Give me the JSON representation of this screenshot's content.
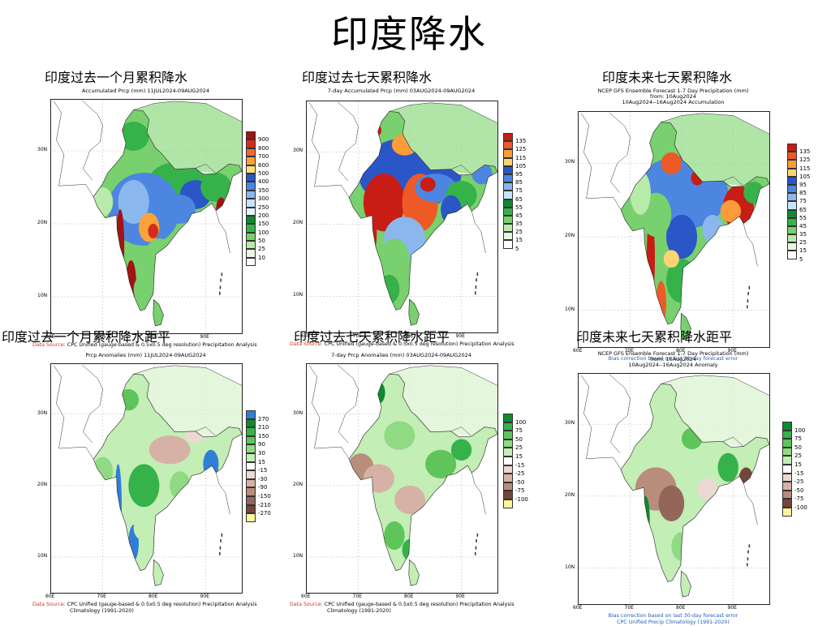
{
  "title": "印度降水",
  "panels": [
    {
      "heading": "印度过去一个月累积降水",
      "subtitle": [
        "Accumulated Prcp (mm) 11JUL2024-09AUG2024"
      ],
      "legend": {
        "labels": [
          "900",
          "800",
          "700",
          "600",
          "500",
          "400",
          "350",
          "300",
          "250",
          "200",
          "150",
          "100",
          "50",
          "25",
          "10"
        ],
        "colors": [
          "#a11414",
          "#d42c1c",
          "#ef6a2c",
          "#fba33a",
          "#fde07a",
          "#2b56c7",
          "#4d86e0",
          "#8ab8ee",
          "#c8e4fb",
          "#e9f6ff",
          "#0f8a2f",
          "#36b24a",
          "#79d06e",
          "#b8eaa9",
          "#e6f8df",
          "#ffffff"
        ]
      },
      "footer": [
        "Data Source: CPC Unified (gauge-based & 0.5x0.5 deg resolution) Precipitation Analysis"
      ],
      "footer_style": "source"
    },
    {
      "heading": "印度过去七天累积降水",
      "subtitle": [
        "7-day Accumulated Prcp (mm) 03AUG2024-09AUG2024"
      ],
      "legend": {
        "labels": [
          "135",
          "125",
          "115",
          "105",
          "95",
          "85",
          "75",
          "65",
          "55",
          "45",
          "35",
          "25",
          "15",
          "5"
        ],
        "colors": [
          "#c81d15",
          "#ee5a26",
          "#fb9b3a",
          "#fdd474",
          "#2b56c7",
          "#4d86e0",
          "#8ab8ee",
          "#c8e4fb",
          "#0f8a2f",
          "#36b24a",
          "#79d06e",
          "#b8eaa9",
          "#e6f8df",
          "#ffffff"
        ]
      },
      "footer": [
        "Data Source: CPC Unified (gauge-based & 0.5x0.5 deg resolution) Precipitation Analysis"
      ],
      "footer_style": "source"
    },
    {
      "heading": "印度未来七天累积降水",
      "subtitle": [
        "NCEP GFS Ensemble Forecast 1-7 Day Precipitation (mm)",
        "from: 10Aug2024",
        "10Aug2024--16Aug2024 Accumulation"
      ],
      "legend": {
        "labels": [
          "135",
          "125",
          "115",
          "105",
          "95",
          "85",
          "75",
          "65",
          "55",
          "45",
          "35",
          "25",
          "15",
          "5"
        ],
        "colors": [
          "#c81d15",
          "#ee5a26",
          "#fb9b3a",
          "#fdd474",
          "#2b56c7",
          "#4d86e0",
          "#8ab8ee",
          "#c8e4fb",
          "#0f8a2f",
          "#36b24a",
          "#79d06e",
          "#b8eaa9",
          "#e6f8df",
          "#ffffff"
        ]
      },
      "footer": [
        "Bias correction based on last 30-day forecast error"
      ],
      "footer_style": "blue"
    },
    {
      "heading": "印度过去一个月累积降水距平",
      "subtitle": [
        "Prcp Anomalies (mm) 11JUL2024-09AUG2024"
      ],
      "legend": {
        "labels": [
          "270",
          "210",
          "150",
          "90",
          "30",
          "15",
          "-15",
          "-30",
          "-90",
          "-150",
          "-210",
          "-270"
        ],
        "colors": [
          "#2f7fd6",
          "#0f8a2f",
          "#36b24a",
          "#5fc45a",
          "#8fda82",
          "#c3eeb6",
          "#ffffff",
          "#ecd9d3",
          "#d6b2a6",
          "#b88d7c",
          "#94665a",
          "#74463b",
          "#fff59a"
        ]
      },
      "footer": [
        "Data Source: CPC Unified (gauge-based & 0.5x0.5 deg resolution) Precipitation Analysis",
        "Climatology (1991-2020)"
      ],
      "footer_style": "source"
    },
    {
      "heading": "印度过去七天累积降水距平",
      "subtitle": [
        "7-day Prcp Anomalies (mm) 03AUG2024-09AUG2024"
      ],
      "legend": {
        "labels": [
          "100",
          "75",
          "50",
          "25",
          "15",
          "-15",
          "-25",
          "-50",
          "-75",
          "-100"
        ],
        "colors": [
          "#0f8a2f",
          "#36b24a",
          "#5fc45a",
          "#8fda82",
          "#c3eeb6",
          "#ffffff",
          "#ecd9d3",
          "#d6b2a6",
          "#b88d7c",
          "#74463b",
          "#fff59a"
        ]
      },
      "footer": [
        "Data Source: CPC Unified (gauge-based & 0.5x0.5 deg resolution) Precipitation Analysis",
        "Climatology (1991-2020)"
      ],
      "footer_style": "source"
    },
    {
      "heading": "印度未来七天累积降水距平",
      "subtitle": [
        "NCEP GFS Ensemble Forecast 1-7 Day Precipitation (mm)",
        "from: 10Aug2024",
        "10Aug2024--16Aug2024 Anomaly"
      ],
      "legend": {
        "labels": [
          "100",
          "75",
          "50",
          "25",
          "15",
          "-15",
          "-25",
          "-50",
          "-75",
          "-100"
        ],
        "colors": [
          "#0f8a2f",
          "#36b24a",
          "#5fc45a",
          "#8fda82",
          "#c3eeb6",
          "#ffffff",
          "#ecd9d3",
          "#d6b2a6",
          "#b88d7c",
          "#74463b",
          "#fff59a"
        ]
      },
      "footer": [
        "Bias correction based on last 30-day forecast error",
        "CPC Unified Precip Climatology (1991-2020)"
      ],
      "footer_style": "blue"
    }
  ],
  "axes": {
    "lon_ticks": [
      "60E",
      "70E",
      "80E",
      "90E"
    ],
    "lat_ticks": [
      "30N",
      "20N",
      "10N"
    ]
  }
}
